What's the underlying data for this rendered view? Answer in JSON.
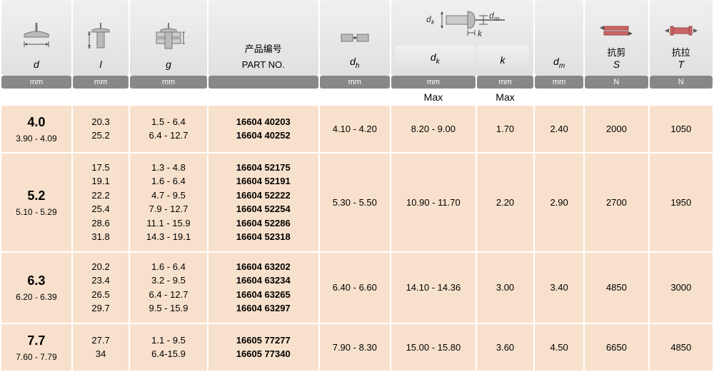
{
  "columns": {
    "d": {
      "sym": "d",
      "unit": "mm"
    },
    "l": {
      "sym": "l",
      "unit": "mm"
    },
    "g": {
      "sym": "g",
      "unit": "mm"
    },
    "part": {
      "cjk": "产品编号",
      "en": "PART NO."
    },
    "dh": {
      "sym": "d",
      "sub": "h",
      "unit": "mm"
    },
    "dk": {
      "sym": "d",
      "sub": "k",
      "unit": "mm",
      "note": "Max"
    },
    "k": {
      "sym": "k",
      "unit": "mm",
      "note": "Max"
    },
    "dm": {
      "sym": "d",
      "sub": "m",
      "unit": "mm"
    },
    "S": {
      "cjk": "抗剪",
      "sym": "S",
      "unit": "N"
    },
    "T": {
      "cjk": "抗拉",
      "sym": "T",
      "unit": "N"
    }
  },
  "rows": [
    {
      "d": "4.0",
      "drange": "3.90 - 4.09",
      "l": [
        "20.3",
        "25.2"
      ],
      "g": [
        "1.5 - 6.4",
        "6.4 - 12.7"
      ],
      "part": [
        "16604 40203",
        "16604 40252"
      ],
      "dh": "4.10 - 4.20",
      "dk": "8.20 - 9.00",
      "k": "1.70",
      "dm": "2.40",
      "S": "2000",
      "T": "1050"
    },
    {
      "d": "5.2",
      "drange": "5.10 - 5.29",
      "l": [
        "17.5",
        "19.1",
        "22.2",
        "25.4",
        "28.6",
        "31.8"
      ],
      "g": [
        "1.3 - 4.8",
        "1.6 - 6.4",
        "4.7 - 9.5",
        "7.9 - 12.7",
        "11.1 - 15.9",
        "14.3 - 19.1"
      ],
      "part": [
        "16604 52175",
        "16604 52191",
        "16604 52222",
        "16604 52254",
        "16604 52286",
        "16604 52318"
      ],
      "dh": "5.30 - 5.50",
      "dk": "10.90 - 11.70",
      "k": "2.20",
      "dm": "2.90",
      "S": "2700",
      "T": "1950"
    },
    {
      "d": "6.3",
      "drange": "6.20 - 6.39",
      "l": [
        "20.2",
        "23.4",
        "26.5",
        "29.7"
      ],
      "g": [
        "1.6 - 6.4",
        "3.2 - 9.5",
        "6.4 - 12.7",
        "9.5 - 15.9"
      ],
      "part": [
        "16604 63202",
        "16604 63234",
        "16604 63265",
        "16604 63297"
      ],
      "dh": "6.40 - 6.60",
      "dk": "14.10 - 14.36",
      "k": "3.00",
      "dm": "3.40",
      "S": "4850",
      "T": "3000"
    },
    {
      "d": "7.7",
      "drange": "7.60 - 7.79",
      "l": [
        "27.7",
        "34"
      ],
      "g": [
        "1.1 - 9.5",
        "6.4-15.9"
      ],
      "part": [
        "16605 77277",
        "16605 77340"
      ],
      "dh": "7.90 - 8.30",
      "dk": "15.00 - 15.80",
      "k": "3.60",
      "dm": "4.50",
      "S": "6650",
      "T": "4850"
    }
  ],
  "widths": [
    100,
    80,
    110,
    160,
    100,
    120,
    80,
    70,
    90,
    90
  ],
  "colors": {
    "header_bg": "#e8e8e8",
    "unit_bg": "#888888",
    "row_bg": "#f8e1cc",
    "text": "#333333"
  }
}
